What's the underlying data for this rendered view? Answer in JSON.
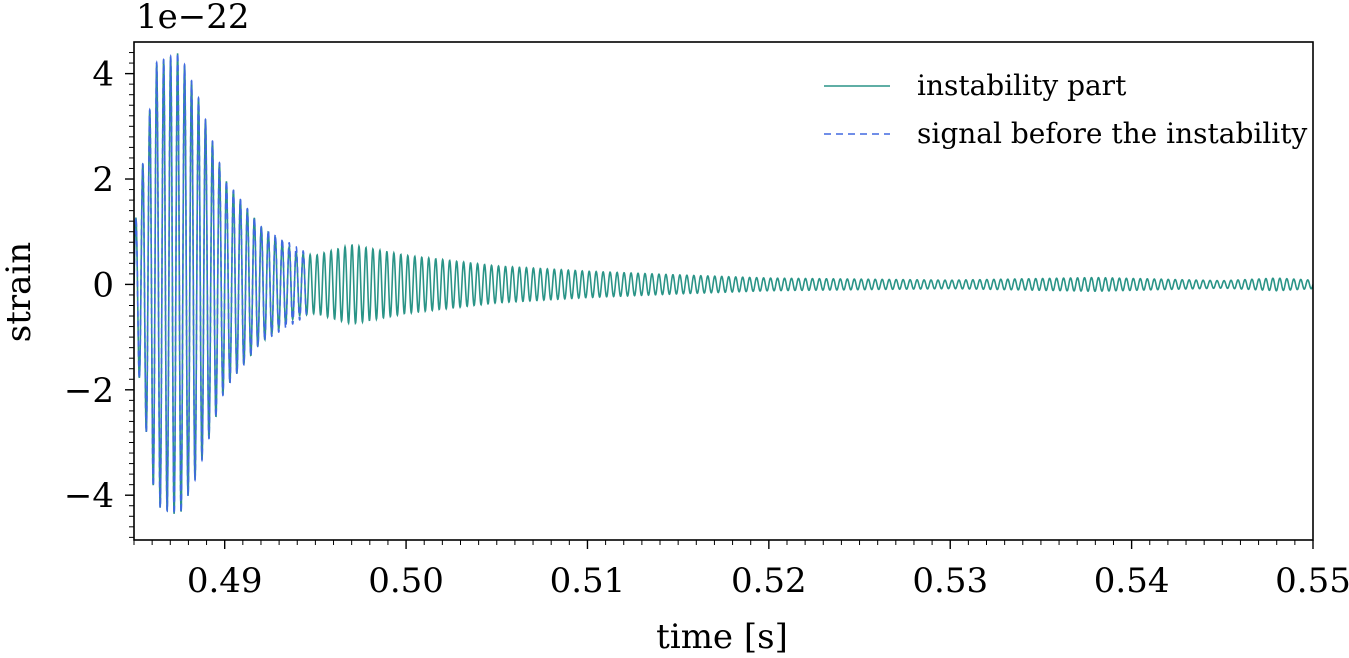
{
  "chart_data": {
    "type": "line",
    "title": "",
    "xlabel": "time [s]",
    "ylabel": "strain",
    "offset_text": "1e−22",
    "xlim": [
      0.485,
      0.55
    ],
    "ylim": [
      -4.85,
      4.6
    ],
    "grid": false,
    "legend_position": "top-right",
    "x_ticks": [
      0.49,
      0.5,
      0.51,
      0.52,
      0.53,
      0.54,
      0.55
    ],
    "x_tick_labels": [
      "0.49",
      "0.50",
      "0.51",
      "0.52",
      "0.53",
      "0.54",
      "0.55"
    ],
    "y_ticks": [
      -4,
      -2,
      0,
      2,
      4
    ],
    "y_tick_labels": [
      "−4",
      "−2",
      "0",
      "2",
      "4"
    ],
    "series": [
      {
        "name": "instability part",
        "style": "solid",
        "color": "#2a9487",
        "t_start": 0.485,
        "t_end": 0.55,
        "frequency_hz": 2600,
        "envelope": [
          {
            "t": 0.485,
            "a": 1.0
          },
          {
            "t": 0.4862,
            "a": 4.2
          },
          {
            "t": 0.4875,
            "a": 4.4
          },
          {
            "t": 0.4885,
            "a": 3.6
          },
          {
            "t": 0.49,
            "a": 2.0
          },
          {
            "t": 0.492,
            "a": 1.1
          },
          {
            "t": 0.494,
            "a": 0.6
          },
          {
            "t": 0.495,
            "a": 0.55
          },
          {
            "t": 0.497,
            "a": 0.75
          },
          {
            "t": 0.5,
            "a": 0.55
          },
          {
            "t": 0.505,
            "a": 0.35
          },
          {
            "t": 0.51,
            "a": 0.25
          },
          {
            "t": 0.515,
            "a": 0.18
          },
          {
            "t": 0.52,
            "a": 0.12
          },
          {
            "t": 0.53,
            "a": 0.08
          },
          {
            "t": 0.538,
            "a": 0.13
          },
          {
            "t": 0.545,
            "a": 0.07
          },
          {
            "t": 0.548,
            "a": 0.12
          },
          {
            "t": 0.55,
            "a": 0.08
          }
        ]
      },
      {
        "name": "signal before the instability",
        "style": "dashed",
        "color": "#4169e1",
        "t_start": 0.485,
        "t_end": 0.4945,
        "frequency_hz": 2600,
        "envelope": [
          {
            "t": 0.485,
            "a": 1.0
          },
          {
            "t": 0.4862,
            "a": 4.2
          },
          {
            "t": 0.4875,
            "a": 4.4
          },
          {
            "t": 0.4885,
            "a": 3.6
          },
          {
            "t": 0.49,
            "a": 2.0
          },
          {
            "t": 0.492,
            "a": 1.1
          },
          {
            "t": 0.4945,
            "a": 0.6
          }
        ]
      }
    ]
  }
}
